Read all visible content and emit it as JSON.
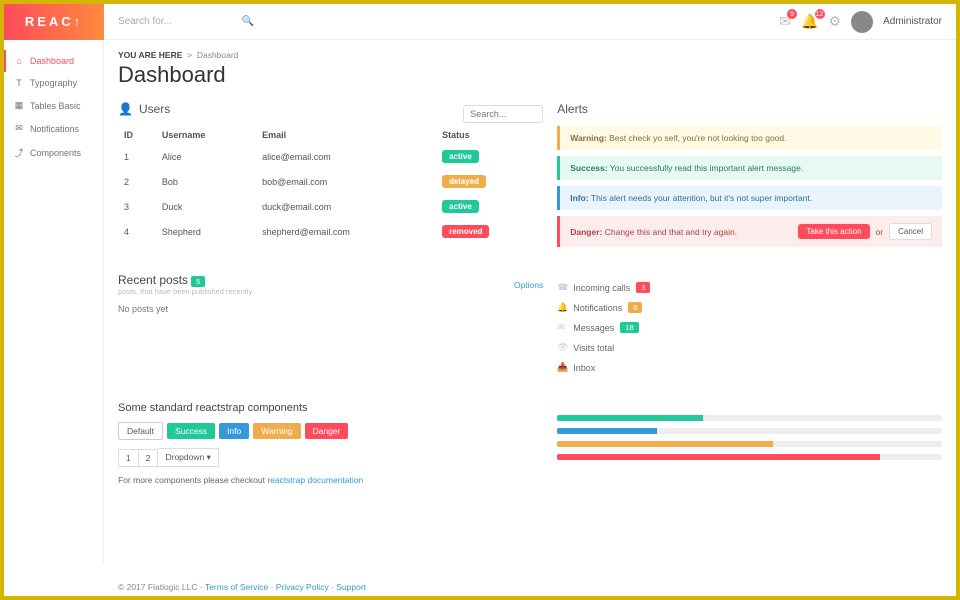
{
  "brand": "REAC↑",
  "search_placeholder": "Search for...",
  "topbar": {
    "mail_badge": "9",
    "bell_badge": "12",
    "user_label": "Administrator"
  },
  "sidebar": {
    "items": [
      {
        "icon": "⌂",
        "label": "Dashboard",
        "active": true
      },
      {
        "icon": "T",
        "label": "Typography"
      },
      {
        "icon": "▦",
        "label": "Tables Basic"
      },
      {
        "icon": "✉",
        "label": "Notifications"
      },
      {
        "icon": "⤴",
        "label": "Components"
      }
    ]
  },
  "breadcrumb": {
    "prefix": "YOU ARE HERE",
    "sep": ">",
    "current": "Dashboard"
  },
  "page_title": "Dashboard",
  "users": {
    "title": "Users",
    "search_placeholder": "Search...",
    "columns": [
      "ID",
      "Username",
      "Email",
      "Status"
    ],
    "rows": [
      {
        "id": "1",
        "name": "Alice",
        "email": "alice@email.com",
        "status": "active",
        "status_color": "#1fc998"
      },
      {
        "id": "2",
        "name": "Bob",
        "email": "bob@email.com",
        "status": "delayed",
        "status_color": "#f0ad4e"
      },
      {
        "id": "3",
        "name": "Duck",
        "email": "duck@email.com",
        "status": "active",
        "status_color": "#1fc998"
      },
      {
        "id": "4",
        "name": "Shepherd",
        "email": "shepherd@email.com",
        "status": "removed",
        "status_color": "#ff4b5c"
      }
    ]
  },
  "alerts": {
    "title": "Alerts",
    "items": [
      {
        "kind": "warning",
        "label": "Warning:",
        "text": "Best check yo self, you're not looking too good."
      },
      {
        "kind": "success",
        "label": "Success:",
        "text": "You successfully read this important alert message."
      },
      {
        "kind": "info",
        "label": "Info:",
        "text": "This alert needs your attention, but it's not super important."
      },
      {
        "kind": "danger",
        "label": "Danger:",
        "text": "Change this and that and try again.",
        "action": "Take this action",
        "or": "or",
        "cancel": "Cancel"
      }
    ]
  },
  "posts": {
    "title": "Recent posts",
    "count": "5",
    "subtitle": "posts, that have been published recently",
    "options": "Options",
    "empty": "No posts yet"
  },
  "stats": [
    {
      "icon": "☎",
      "label": "Incoming calls",
      "badge": "3",
      "badge_bg": "#ff4b5c"
    },
    {
      "icon": "🔔",
      "label": "Notifications",
      "badge": "6",
      "badge_bg": "#f0ad4e"
    },
    {
      "icon": "✉",
      "label": "Messages",
      "badge": "18",
      "badge_bg": "#1fc998"
    },
    {
      "icon": "👁",
      "label": "Visits total"
    },
    {
      "icon": "📥",
      "label": "Inbox"
    }
  ],
  "components": {
    "title": "Some standard reactstrap components",
    "tags": [
      {
        "label": "Default",
        "bg": "#ffffff",
        "fg": "#555",
        "border": true
      },
      {
        "label": "Success",
        "bg": "#1fc998"
      },
      {
        "label": "Info",
        "bg": "#3498db"
      },
      {
        "label": "Warning",
        "bg": "#f0ad4e"
      },
      {
        "label": "Danger",
        "bg": "#ff4b5c"
      }
    ],
    "pager": [
      "1",
      "2",
      "Dropdown ▾"
    ],
    "more_text": "For more components please checkout ",
    "more_link": "reactstrap documentation"
  },
  "progress": [
    {
      "pct": 38,
      "color": "#1fc998"
    },
    {
      "pct": 26,
      "color": "#3498db"
    },
    {
      "pct": 56,
      "color": "#f0ad4e"
    },
    {
      "pct": 84,
      "color": "#ff4b5c"
    }
  ],
  "footer": {
    "copyright": "© 2017  Flatlogic LLC",
    "links": [
      "Terms of Service",
      "Privacy Policy",
      "Support"
    ]
  }
}
